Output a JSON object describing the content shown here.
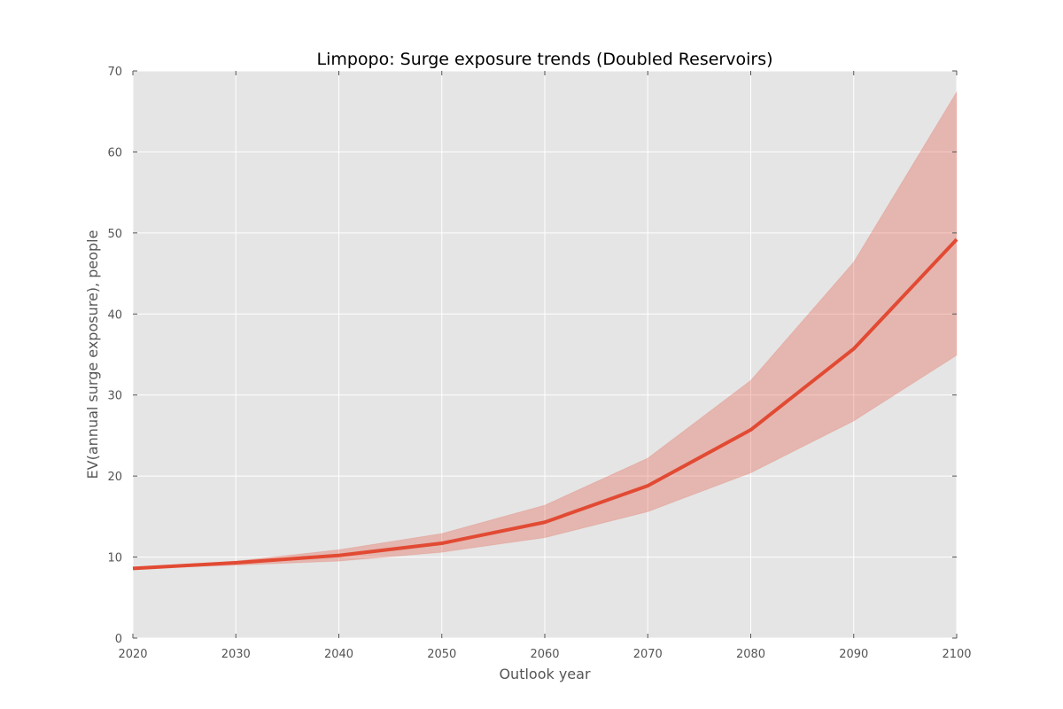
{
  "chart_data": {
    "type": "line",
    "title": "Limpopo: Surge exposure trends (Doubled Reservoirs)",
    "xlabel": "Outlook year",
    "ylabel": "EV(annual surge exposure), people",
    "xlim": [
      2020,
      2100
    ],
    "ylim": [
      0,
      70
    ],
    "xticks": [
      2020,
      2030,
      2040,
      2050,
      2060,
      2070,
      2080,
      2090,
      2100
    ],
    "yticks": [
      0,
      10,
      20,
      30,
      40,
      50,
      60,
      70
    ],
    "grid": true,
    "x": [
      2020,
      2030,
      2040,
      2050,
      2060,
      2070,
      2080,
      2090,
      2100
    ],
    "series": [
      {
        "values": [
          8.6,
          9.3,
          10.2,
          11.7,
          14.3,
          18.8,
          25.7,
          35.7,
          49.2
        ],
        "lower": [
          8.6,
          9.0,
          9.5,
          10.6,
          12.4,
          15.6,
          20.4,
          26.8,
          34.9
        ],
        "upper": [
          8.6,
          9.5,
          10.9,
          12.9,
          16.4,
          22.2,
          31.8,
          46.4,
          67.4
        ],
        "color": "#e24a33",
        "band_color": "#e24a33"
      }
    ],
    "colors": {
      "plot_background": "#e5e5e5",
      "grid": "#ffffff",
      "text": "#555555"
    }
  }
}
